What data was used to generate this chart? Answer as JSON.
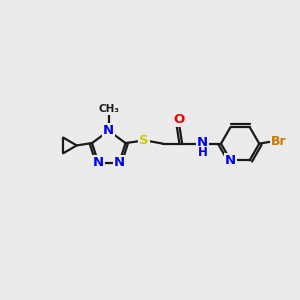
{
  "background_color": "#ebebeb",
  "bond_color": "#1a1a1a",
  "bond_width": 1.6,
  "atom_colors": {
    "N": "#0000ee",
    "O": "#ee0000",
    "S": "#cccc00",
    "Br": "#cc7700",
    "C": "#1a1a1a",
    "H": "#1a1a1a"
  },
  "font_size": 9.5,
  "fig_width": 3.0,
  "fig_height": 3.0
}
